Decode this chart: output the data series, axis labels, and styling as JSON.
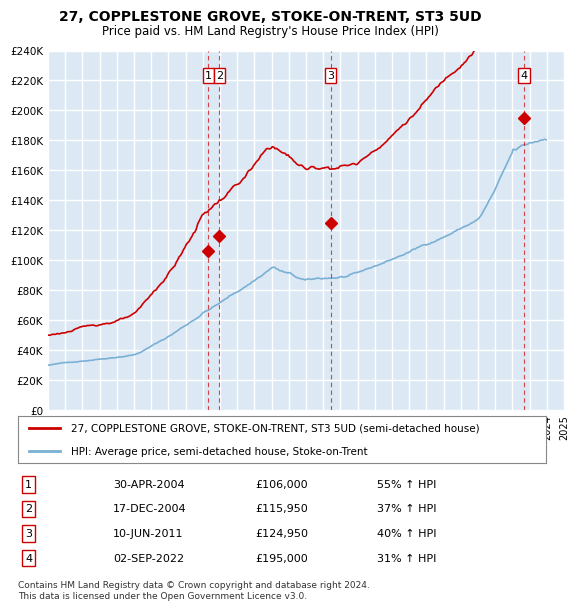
{
  "title": "27, COPPLESTONE GROVE, STOKE-ON-TRENT, ST3 5UD",
  "subtitle": "Price paid vs. HM Land Registry's House Price Index (HPI)",
  "ylabel": "",
  "background_color": "#dce9f5",
  "plot_bg_color": "#dce9f5",
  "grid_color": "#ffffff",
  "ylim": [
    0,
    240000
  ],
  "yticks": [
    0,
    20000,
    40000,
    60000,
    80000,
    100000,
    120000,
    140000,
    160000,
    180000,
    200000,
    220000,
    240000
  ],
  "ytick_labels": [
    "£0",
    "£20K",
    "£40K",
    "£60K",
    "£80K",
    "£100K",
    "£120K",
    "£140K",
    "£160K",
    "£180K",
    "£200K",
    "£220K",
    "£240K"
  ],
  "sales": [
    {
      "date_num": 2004.33,
      "price": 106000,
      "label": "1"
    },
    {
      "date_num": 2004.96,
      "price": 115950,
      "label": "2"
    },
    {
      "date_num": 2011.44,
      "price": 124950,
      "label": "3"
    },
    {
      "date_num": 2022.67,
      "price": 195000,
      "label": "4"
    }
  ],
  "legend_entries": [
    "27, COPPLESTONE GROVE, STOKE-ON-TRENT, ST3 5UD (semi-detached house)",
    "HPI: Average price, semi-detached house, Stoke-on-Trent"
  ],
  "table_rows": [
    [
      "1",
      "30-APR-2004",
      "£106,000",
      "55% ↑ HPI"
    ],
    [
      "2",
      "17-DEC-2004",
      "£115,950",
      "37% ↑ HPI"
    ],
    [
      "3",
      "10-JUN-2011",
      "£124,950",
      "40% ↑ HPI"
    ],
    [
      "4",
      "02-SEP-2022",
      "£195,000",
      "31% ↑ HPI"
    ]
  ],
  "footnote": "Contains HM Land Registry data © Crown copyright and database right 2024.\nThis data is licensed under the Open Government Licence v3.0.",
  "hpi_color": "#7ab0d4",
  "price_color": "#cc0000",
  "sale_marker_color": "#cc0000",
  "vline_color": "#cc0000"
}
